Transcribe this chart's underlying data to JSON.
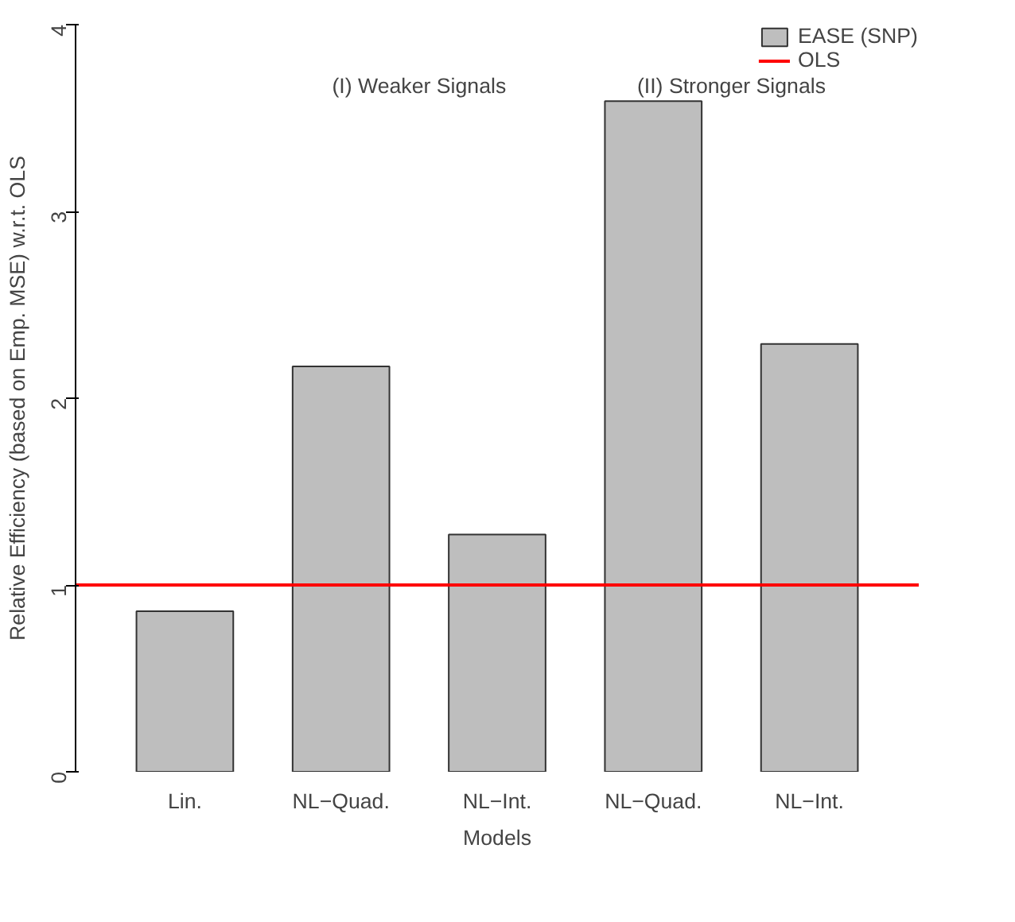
{
  "chart_data": {
    "type": "bar",
    "xlabel": "Models",
    "ylabel": "Relative Efficiency (based on Emp. MSE) w.r.t. OLS",
    "categories": [
      "Lin.",
      "NL−Quad.",
      "NL−Int.",
      "NL−Quad.",
      "NL−Int."
    ],
    "series": [
      {
        "name": "EASE (SNP)",
        "color": "#bebebe",
        "values": [
          0.86,
          2.17,
          1.27,
          3.59,
          2.29
        ]
      }
    ],
    "ylim": [
      0,
      4
    ],
    "yticks": [
      0,
      1,
      2,
      3,
      4
    ],
    "ref_lines": [
      {
        "axis": "y",
        "value": 1,
        "label": "OLS",
        "color": "#ff0000"
      }
    ],
    "annotations": [
      "(I) Weaker Signals",
      "(II) Stronger Signals"
    ],
    "legend": "top right",
    "grid": false
  }
}
